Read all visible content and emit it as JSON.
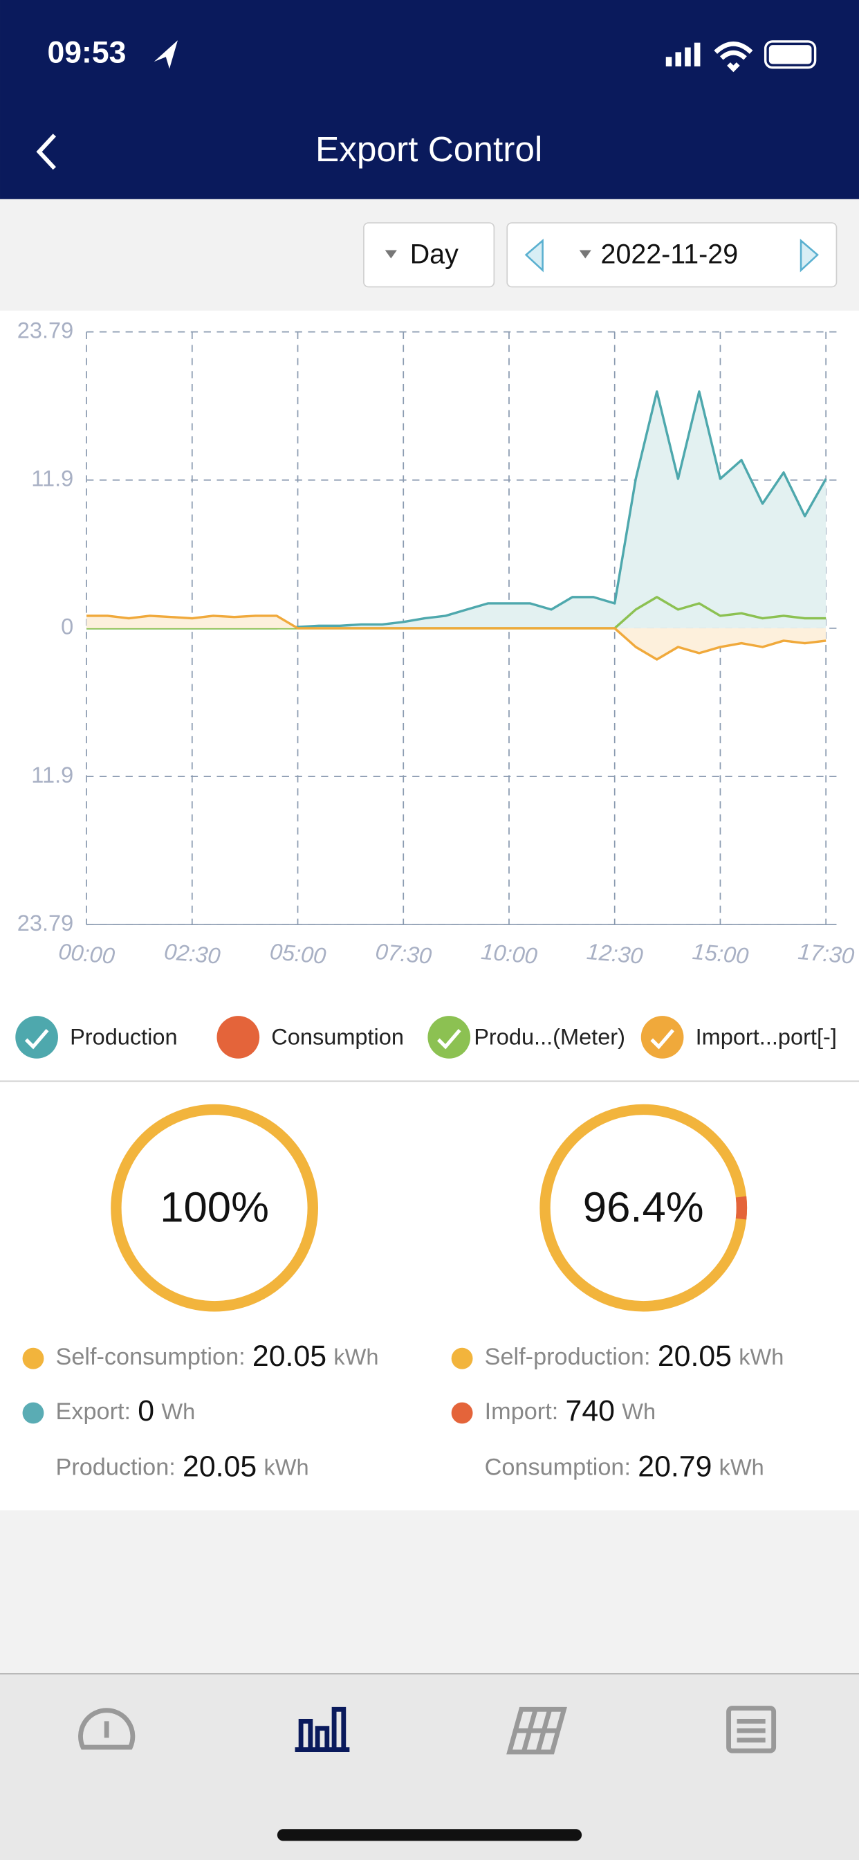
{
  "status_bar": {
    "time": "09:53"
  },
  "header": {
    "title": "Export Control"
  },
  "controls": {
    "period": "Day",
    "date": "2022-11-29"
  },
  "chart_data": {
    "type": "line",
    "x": [
      0,
      0.5,
      1,
      1.5,
      2,
      2.5,
      3,
      3.5,
      4,
      4.5,
      5,
      5.5,
      6,
      6.5,
      7,
      7.5,
      8,
      8.5,
      9,
      9.5,
      10,
      10.5,
      11,
      11.5,
      12,
      12.5,
      13,
      13.5,
      14,
      14.5,
      15,
      15.5,
      16,
      16.5,
      17,
      17.5
    ],
    "xlim": [
      0,
      17.75
    ],
    "xticks": [
      {
        "value": 0,
        "label": "00:00"
      },
      {
        "value": 2.5,
        "label": "02:30"
      },
      {
        "value": 5,
        "label": "05:00"
      },
      {
        "value": 7.5,
        "label": "07:30"
      },
      {
        "value": 10,
        "label": "10:00"
      },
      {
        "value": 12.5,
        "label": "12:30"
      },
      {
        "value": 15,
        "label": "15:00"
      },
      {
        "value": 17.5,
        "label": "17:30"
      }
    ],
    "ylim": [
      -23.79,
      23.79
    ],
    "yticks": [
      {
        "value": -23.79,
        "label": "23.79"
      },
      {
        "value": -11.9,
        "label": "11.9"
      },
      0,
      11.9,
      23.79
    ],
    "grid": true,
    "series": [
      {
        "name": "Production",
        "color": "#4ea8ad",
        "fill": "#e3f1f1",
        "values": [
          0,
          0,
          0,
          0,
          0,
          0,
          0,
          0,
          0,
          0,
          0.1,
          0.2,
          0.2,
          0.3,
          0.3,
          0.5,
          0.8,
          1,
          1.5,
          2,
          2,
          2,
          1.5,
          2.5,
          2.5,
          2,
          12,
          19,
          12,
          19,
          12,
          13.5,
          10,
          12.5,
          9,
          12
        ]
      },
      {
        "name": "Consumption",
        "color": "#e4643a",
        "visible": false
      },
      {
        "name": "Produ...(Meter)",
        "color": "#8cc152",
        "values": [
          0,
          0,
          0,
          0,
          0,
          0,
          0,
          0,
          0,
          0,
          0,
          0,
          0,
          0,
          0,
          0,
          0,
          0,
          0,
          0,
          0,
          0,
          0,
          0,
          0,
          0,
          1.5,
          2.5,
          1.5,
          2,
          1,
          1.2,
          0.8,
          1,
          0.8,
          0.8
        ]
      },
      {
        "name": "Import...port[-]",
        "color": "#f0a93b",
        "fill": "#fdf0dc",
        "values": [
          1,
          1,
          0.8,
          1,
          0.9,
          0.8,
          1,
          0.9,
          1,
          1,
          0,
          0,
          0,
          0,
          0,
          0,
          0,
          0,
          0,
          0,
          0,
          0,
          0,
          0,
          0,
          0,
          -1.5,
          -2.5,
          -1.5,
          -2,
          -1.5,
          -1.2,
          -1.5,
          -1,
          -1.2,
          -1
        ]
      }
    ]
  },
  "summary": [
    {
      "value": 100,
      "value_label": "100%",
      "ring_color": "#f2b43c",
      "rest_color": "#e4643a",
      "rows": [
        {
          "label": "Self-consumption:",
          "amount": 20.05,
          "unit": "kWh",
          "dot": "#f2b43c"
        },
        {
          "label": "Export:",
          "amount": 0,
          "unit": "Wh",
          "dot": "#5aacb4"
        },
        {
          "label": "Production:",
          "amount": 20.05,
          "unit": "kWh"
        }
      ]
    },
    {
      "value": 96.4,
      "value_label": "96.4%",
      "ring_color": "#f2b43c",
      "rest_color": "#e4643a",
      "rows": [
        {
          "label": "Self-production:",
          "amount": 20.05,
          "unit": "kWh",
          "dot": "#f2b43c"
        },
        {
          "label": "Import:",
          "amount": 740,
          "unit": "Wh",
          "dot": "#e4643a"
        },
        {
          "label": "Consumption:",
          "amount": 20.79,
          "unit": "kWh"
        }
      ]
    }
  ]
}
